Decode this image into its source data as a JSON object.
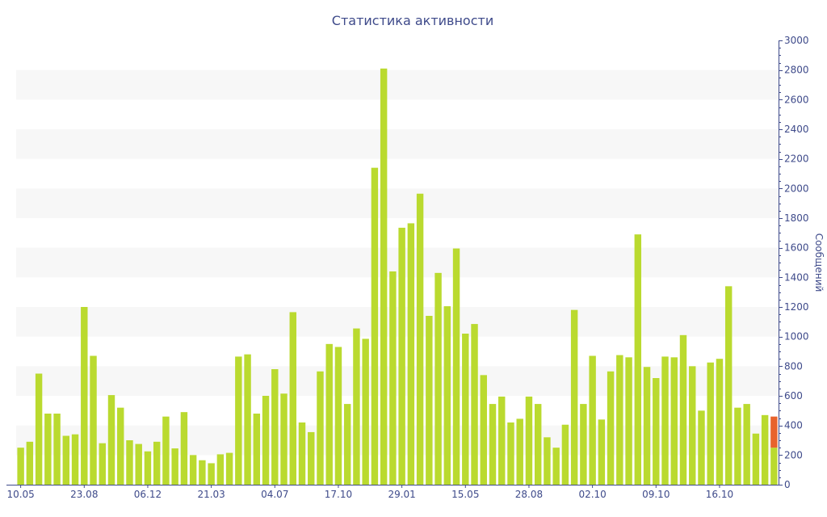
{
  "chart_data": {
    "type": "bar",
    "title": "Статистика активности",
    "xlabel": "",
    "ylabel": "Сообщений",
    "ylim": [
      0,
      3000
    ],
    "yticks": [
      0,
      200,
      400,
      600,
      800,
      1000,
      1200,
      1400,
      1600,
      1800,
      2000,
      2200,
      2400,
      2600,
      2800,
      3000
    ],
    "y_axis_side": "right",
    "grid": "alternating horizontal bands",
    "x_tick_labels": [
      {
        "index": 0,
        "label": "10.05"
      },
      {
        "index": 7,
        "label": "23.08"
      },
      {
        "index": 14,
        "label": "06.12"
      },
      {
        "index": 21,
        "label": "21.03"
      },
      {
        "index": 28,
        "label": "04.07"
      },
      {
        "index": 35,
        "label": "17.10"
      },
      {
        "index": 42,
        "label": "29.01"
      },
      {
        "index": 49,
        "label": "15.05"
      },
      {
        "index": 56,
        "label": "28.08"
      },
      {
        "index": 63,
        "label": "02.10"
      },
      {
        "index": 70,
        "label": "09.10"
      },
      {
        "index": 77,
        "label": "16.10"
      }
    ],
    "values": [
      250,
      290,
      750,
      480,
      480,
      330,
      340,
      1200,
      870,
      280,
      605,
      520,
      300,
      275,
      225,
      290,
      460,
      245,
      490,
      200,
      165,
      145,
      205,
      215,
      865,
      880,
      480,
      600,
      780,
      615,
      1165,
      420,
      355,
      765,
      950,
      930,
      545,
      1055,
      985,
      2140,
      2810,
      1440,
      1735,
      1765,
      1965,
      1140,
      1430,
      1205,
      1595,
      1020,
      1085,
      740,
      545,
      595,
      420,
      445,
      595,
      545,
      320,
      250,
      405,
      1180,
      545,
      870,
      440,
      765,
      875,
      860,
      1690,
      795,
      720,
      865,
      860,
      1010,
      800,
      500,
      825,
      850,
      1340,
      520,
      545,
      345,
      470,
      460
    ],
    "highlight": {
      "index": 83,
      "values": [
        460,
        250
      ]
    },
    "colors": {
      "bar": "#bada2f",
      "highlight": "#e8632c",
      "band": "#f7f7f7",
      "axis": "#3e4a8a",
      "text": "#3e4a8a"
    }
  }
}
